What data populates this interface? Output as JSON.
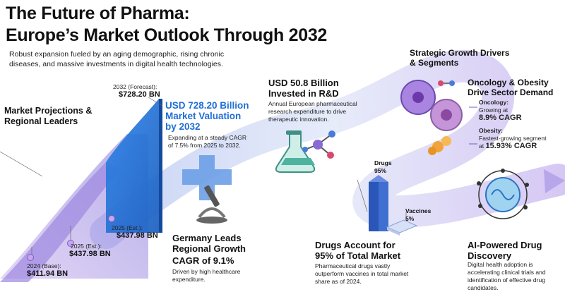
{
  "title": {
    "line1": "The Future of Pharma:",
    "line2": "Europe’s Market Outlook Through 2032"
  },
  "subtitle": "Robust expansion fueled by an aging demographic, rising chronic diseases, and massive investments in digital health technologies.",
  "projections": {
    "heading_line1": "Market Projections &",
    "heading_line2": "Regional Leaders",
    "forecast_label": "2032 (Forecast):",
    "forecast_value": "$728.20 BN",
    "valuation_line1": "USD 728.20 Billion",
    "valuation_line2": "Market Valuation",
    "valuation_line3": "by 2032",
    "cagr_note": "Expanding at a steady CAGR of 7.5% from 2025 to 2032.",
    "est1_label": "2025 (Est.):",
    "est1_value": "$437.98 BN",
    "est2_label": "2025 (Est.):",
    "est2_value": "$437.98 BN",
    "base_label": "2024 (Base):",
    "base_value": "$411.94 BN"
  },
  "germany": {
    "heading_line1": "Germany Leads",
    "heading_line2": "Regional Growth",
    "cagr": "CAGR of 9.1%",
    "note": "Driven by high healthcare expenditure."
  },
  "rnd": {
    "heading_line1": "USD 50.8 Billion",
    "heading_line2": "Invested in R&D",
    "note": "Annual European pharmaceutical research expenditure to drive therapeutic innovation."
  },
  "drivers": {
    "heading_line1": "Strategic Growth Drivers",
    "heading_line2": "& Segments",
    "oncology_heading_line1": "Oncology & Obesity",
    "oncology_heading_line2": "Drive Sector Demand",
    "oncology_label": "Oncology:",
    "oncology_text": "Growing at",
    "oncology_value": "8.9% CAGR",
    "obesity_label": "Obesity:",
    "obesity_text1": "Fastest-growing segment",
    "obesity_text2": "at",
    "obesity_value": "15.93% CAGR"
  },
  "share": {
    "drugs_label": "Drugs",
    "drugs_value": "95%",
    "vaccines_label": "Vaccines",
    "vaccines_value": "5%",
    "heading_line1": "Drugs Account for",
    "heading_line2": "95% of Total Market",
    "note": "Pharmaceutical drugs vastly outperform vaccines in total market share as of 2024."
  },
  "ai": {
    "heading_line1": "AI-Powered Drug",
    "heading_line2": "Discovery",
    "note": "Digital health adoption is accelerating clinical trials and identification of effective drug candidates."
  },
  "colors": {
    "blue": "#1f6fd6",
    "purple": "#8b5fd1",
    "road": "#cfd8f4",
    "orange": "#f2a33a"
  }
}
